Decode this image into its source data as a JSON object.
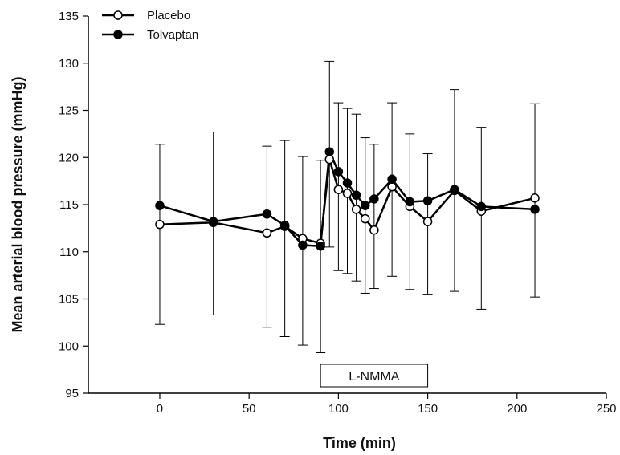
{
  "chart_data": {
    "type": "line",
    "title": "",
    "xlabel": "Time (min)",
    "ylabel": "Mean arterial blood pressure (mmHg)",
    "xlim": [
      -40,
      250
    ],
    "ylim": [
      95,
      135
    ],
    "xticks": [
      0,
      50,
      100,
      150,
      200,
      250
    ],
    "yticks": [
      95,
      100,
      105,
      110,
      115,
      120,
      125,
      130,
      135
    ],
    "grid": false,
    "legend_position": "top-left",
    "annotation": {
      "text": "L-NMMA",
      "x_start": 90,
      "x_end": 150
    },
    "x": [
      0,
      30,
      60,
      70,
      80,
      90,
      95,
      100,
      105,
      110,
      115,
      120,
      130,
      140,
      150,
      165,
      180,
      210
    ],
    "series": [
      {
        "name": "Placebo",
        "marker": "open-circle",
        "color": "#000000",
        "values": [
          112.9,
          113.1,
          112.0,
          112.7,
          111.4,
          110.9,
          119.8,
          116.6,
          116.2,
          114.5,
          113.5,
          112.3,
          116.9,
          114.8,
          113.2,
          116.5,
          114.3,
          115.7
        ]
      },
      {
        "name": "Tolvaptan",
        "marker": "filled-circle",
        "color": "#000000",
        "values": [
          114.9,
          113.2,
          114.0,
          112.8,
          110.7,
          110.6,
          120.6,
          118.5,
          117.3,
          116.0,
          114.9,
          115.6,
          117.7,
          115.3,
          115.4,
          116.6,
          114.8,
          114.5
        ]
      }
    ],
    "error_bars": {
      "upper": [
        121.4,
        122.7,
        121.2,
        121.8,
        120.1,
        119.7,
        130.2,
        125.8,
        125.2,
        124.6,
        122.1,
        121.4,
        125.8,
        122.5,
        120.4,
        127.2,
        123.2,
        125.7
      ],
      "lower": [
        102.3,
        103.3,
        102.0,
        101.0,
        100.1,
        99.3,
        110.5,
        108.0,
        107.7,
        106.9,
        105.6,
        106.1,
        107.4,
        106.0,
        105.5,
        105.8,
        103.9,
        105.2
      ]
    }
  }
}
